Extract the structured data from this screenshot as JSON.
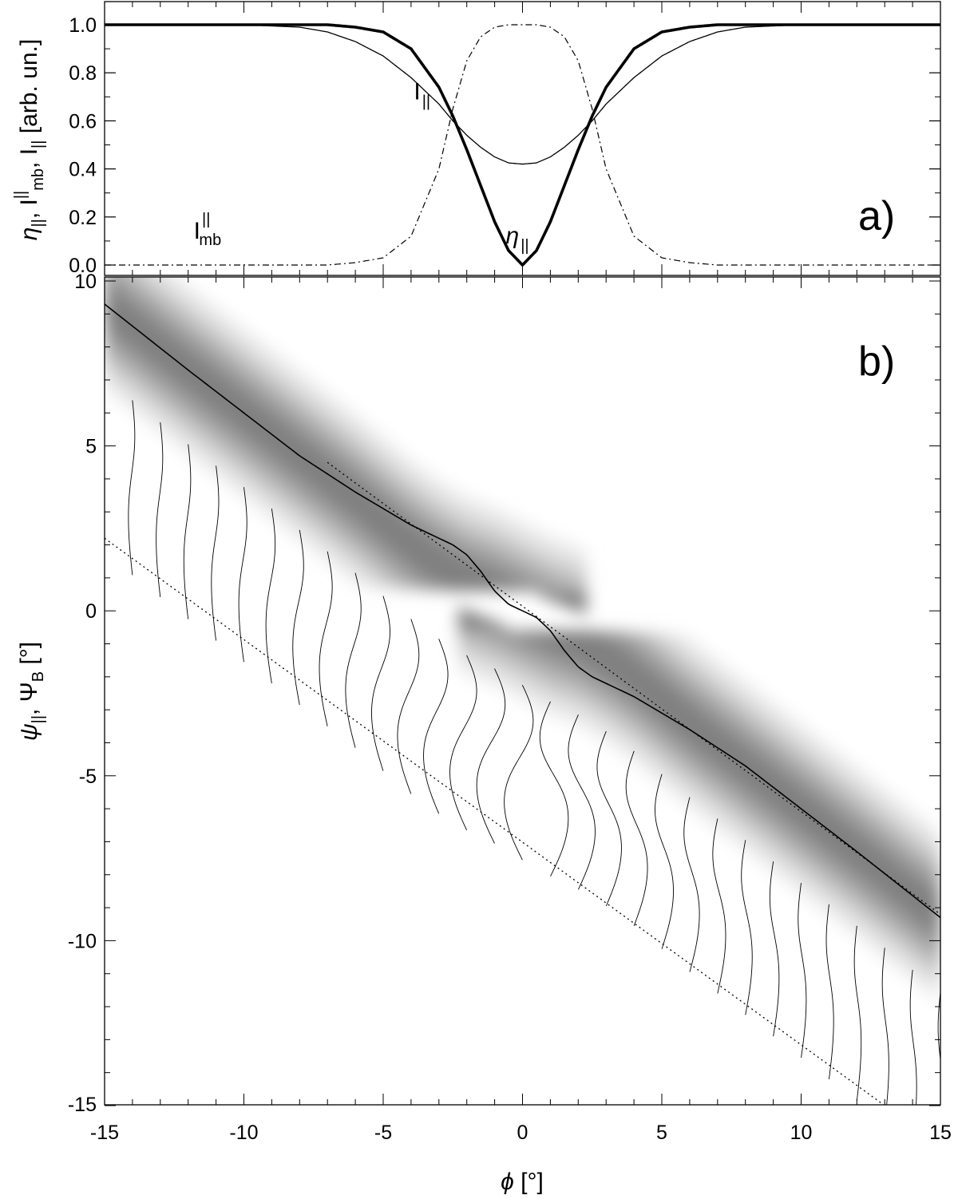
{
  "figure": {
    "panel_a_label": "a)",
    "panel_b_label": "b)"
  },
  "chart_data": [
    {
      "type": "line",
      "panel": "a)",
      "ylabel": "η||, I||mb, I|| [arb. un.]",
      "xlim": [
        -15,
        15
      ],
      "ylim": [
        0.0,
        1.0
      ],
      "yticks": [
        "0.0",
        "0.2",
        "0.4",
        "0.6",
        "0.8",
        "1.0"
      ],
      "x": [
        -15,
        -12,
        -10,
        -8,
        -7,
        -6,
        -5,
        -4,
        -3,
        -2.5,
        -2,
        -1.5,
        -1,
        -0.5,
        0,
        0.5,
        1,
        1.5,
        2,
        2.5,
        3,
        4,
        5,
        6,
        7,
        8,
        10,
        12,
        15
      ],
      "series": [
        {
          "name": "η||",
          "style": "thick",
          "values": [
            1.0,
            1.0,
            1.0,
            1.0,
            1.0,
            0.99,
            0.97,
            0.9,
            0.74,
            0.62,
            0.48,
            0.33,
            0.18,
            0.06,
            0.0,
            0.06,
            0.18,
            0.33,
            0.48,
            0.62,
            0.74,
            0.9,
            0.97,
            0.99,
            1.0,
            1.0,
            1.0,
            1.0,
            1.0
          ]
        },
        {
          "name": "I||",
          "style": "thin",
          "values": [
            1.0,
            1.0,
            1.0,
            0.99,
            0.97,
            0.93,
            0.87,
            0.78,
            0.67,
            0.6,
            0.54,
            0.49,
            0.45,
            0.425,
            0.42,
            0.425,
            0.45,
            0.49,
            0.54,
            0.6,
            0.67,
            0.78,
            0.87,
            0.93,
            0.97,
            0.99,
            1.0,
            1.0,
            1.0
          ]
        },
        {
          "name": "I||mb",
          "style": "dashdot",
          "values": [
            0.0,
            0.0,
            0.0,
            0.0,
            0.0,
            0.01,
            0.03,
            0.12,
            0.4,
            0.65,
            0.85,
            0.95,
            0.99,
            1.0,
            1.0,
            1.0,
            0.99,
            0.95,
            0.85,
            0.65,
            0.4,
            0.12,
            0.03,
            0.01,
            0.0,
            0.0,
            0.0,
            0.0,
            0.0
          ]
        }
      ],
      "annotations": [
        {
          "text": "I",
          "sub": "||",
          "at": [
            -3.9,
            0.69
          ]
        },
        {
          "text": "η",
          "sub": "||",
          "at": [
            -0.6,
            0.09
          ]
        },
        {
          "text": "I",
          "sub": "mb",
          "sup": "||",
          "at": [
            -11.8,
            0.11
          ]
        }
      ]
    },
    {
      "type": "heatmap",
      "panel": "b)",
      "xlabel": "ϕ [°]",
      "ylabel": "ψ||, ΨB [°]",
      "xlim": [
        -15,
        15
      ],
      "ylim": [
        -15,
        10
      ],
      "xticks": [
        "-15",
        "-10",
        "-5",
        "0",
        "5",
        "10",
        "15"
      ],
      "yticks": [
        "-15",
        "-10",
        "-5",
        "0",
        "5",
        "10"
      ],
      "ridge": {
        "x": [
          -15,
          -12,
          -10,
          -8,
          -6,
          -5,
          -4,
          -3,
          -2,
          -1,
          0,
          1,
          2,
          3,
          4,
          5,
          6,
          8,
          10,
          12,
          15
        ],
        "psi": [
          9.3,
          7.3,
          6.0,
          4.7,
          3.4,
          2.7,
          2.0,
          1.4,
          0.9,
          0.5,
          0.0,
          -0.5,
          -0.9,
          -1.4,
          -2.0,
          -2.7,
          -3.4,
          -4.7,
          -6.0,
          -7.3,
          -9.3
        ]
      },
      "series": [
        {
          "name": "ΨB",
          "style": "solid",
          "x": [
            -15,
            -12,
            -10,
            -8,
            -6,
            -5,
            -4,
            -3,
            -2.5,
            -2,
            -1.5,
            -1,
            -0.5,
            0,
            0.5,
            1,
            1.5,
            2,
            2.5,
            3,
            4,
            5,
            6,
            8,
            10,
            12,
            15
          ],
          "values": [
            9.3,
            7.3,
            6.0,
            4.7,
            3.6,
            3.1,
            2.6,
            2.2,
            2.0,
            1.7,
            1.2,
            0.6,
            0.2,
            0.0,
            -0.2,
            -0.6,
            -1.2,
            -1.7,
            -2.0,
            -2.2,
            -2.6,
            -3.1,
            -3.6,
            -4.7,
            -6.0,
            -7.3,
            -9.3
          ]
        },
        {
          "name": "dotted reference (upper)",
          "style": "dotted",
          "x": [
            -7,
            15
          ],
          "values": [
            4.5,
            -9.2
          ]
        },
        {
          "name": "dotted reference (lower)",
          "style": "dotted",
          "x": [
            -15,
            13
          ],
          "values": [
            2.2,
            -15.0
          ]
        }
      ],
      "profiles": {
        "x_start": -14,
        "x_end": 15,
        "step": 1,
        "length_deg": 5.3,
        "offset_deg": 4.9
      }
    }
  ]
}
